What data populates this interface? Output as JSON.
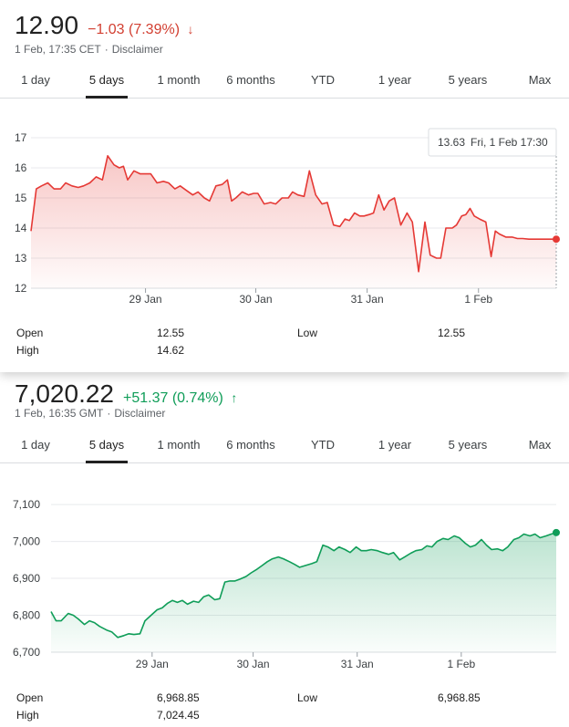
{
  "tabs": [
    "1 day",
    "5 days",
    "1 month",
    "6 months",
    "YTD",
    "1 year",
    "5 years",
    "Max"
  ],
  "active_tab": "5 days",
  "panel1": {
    "price": "12.90",
    "change": "−1.03 (7.39%)",
    "direction": "down",
    "timestamp": "1 Feb, 17:35 CET",
    "separator": "·",
    "disclaimer": "Disclaimer",
    "tooltip_value": "13.63",
    "tooltip_time": "Fri, 1 Feb 17:30",
    "stats": {
      "open_label": "Open",
      "open_value": "12.55",
      "high_label": "High",
      "high_value": "14.62",
      "low_label": "Low",
      "low_value": "12.55"
    }
  },
  "panel2": {
    "price": "7,020.22",
    "change": "+51.37 (0.74%)",
    "direction": "up",
    "timestamp": "1 Feb, 16:35 GMT",
    "separator": "·",
    "disclaimer": "Disclaimer",
    "stats": {
      "open_label": "Open",
      "open_value": "6,968.85",
      "high_label": "High",
      "high_value": "7,024.45",
      "low_label": "Low",
      "low_value": "6,968.85"
    }
  },
  "colors": {
    "down": "#e53935",
    "up": "#0f9d58"
  },
  "icons": {
    "down": "arrow-down-icon",
    "up": "arrow-up-icon"
  },
  "chart_data": [
    {
      "type": "area",
      "ylim": [
        12,
        17
      ],
      "yticks": [
        "17",
        "16",
        "15",
        "14",
        "13",
        "12"
      ],
      "yticks_values": [
        17,
        16,
        15,
        14,
        13,
        12
      ],
      "xticks": [
        "29 Jan",
        "30 Jan",
        "31 Jan",
        "1 Feb"
      ],
      "xticks_pos": [
        1.09,
        2.14,
        3.2,
        4.26
      ],
      "xlim": [
        0,
        5
      ],
      "grid": true,
      "x": [
        0,
        0.05,
        0.1,
        0.16,
        0.22,
        0.28,
        0.33,
        0.39,
        0.45,
        0.5,
        0.56,
        0.62,
        0.68,
        0.73,
        0.79,
        0.84,
        0.88,
        0.92,
        0.98,
        1.04,
        1.09,
        1.14,
        1.2,
        1.26,
        1.31,
        1.37,
        1.42,
        1.48,
        1.54,
        1.59,
        1.65,
        1.7,
        1.76,
        1.82,
        1.87,
        1.91,
        1.95,
        2.01,
        2.07,
        2.12,
        2.16,
        2.22,
        2.28,
        2.33,
        2.39,
        2.45,
        2.49,
        2.54,
        2.6,
        2.65,
        2.71,
        2.77,
        2.82,
        2.88,
        2.94,
        2.99,
        3.03,
        3.08,
        3.13,
        3.17,
        3.22,
        3.26,
        3.31,
        3.36,
        3.41,
        3.46,
        3.52,
        3.58,
        3.63,
        3.69,
        3.75,
        3.8,
        3.86,
        3.9,
        3.95,
        4.01,
        4.05,
        4.1,
        4.14,
        4.18,
        4.22,
        4.27,
        4.33,
        4.38,
        4.42,
        4.46,
        4.52,
        4.58,
        4.63,
        4.68,
        4.74,
        4.78,
        4.84,
        4.88,
        4.94,
        5.0
      ],
      "series": [
        {
          "values": [
            13.9,
            15.3,
            15.4,
            15.5,
            15.3,
            15.3,
            15.5,
            15.4,
            15.35,
            15.4,
            15.5,
            15.7,
            15.6,
            16.4,
            16.1,
            16.0,
            16.05,
            15.6,
            15.9,
            15.8,
            15.8,
            15.8,
            15.5,
            15.55,
            15.5,
            15.3,
            15.4,
            15.25,
            15.1,
            15.2,
            15.0,
            14.9,
            15.4,
            15.45,
            15.6,
            14.9,
            15.0,
            15.2,
            15.1,
            15.15,
            15.15,
            14.8,
            14.85,
            14.8,
            15.0,
            15.0,
            15.2,
            15.1,
            15.05,
            15.9,
            15.1,
            14.8,
            14.85,
            14.1,
            14.05,
            14.3,
            14.25,
            14.5,
            14.4,
            14.4,
            14.45,
            14.5,
            15.1,
            14.6,
            14.9,
            15.0,
            14.1,
            14.5,
            14.2,
            12.55,
            14.2,
            13.1,
            13.0,
            13.0,
            14.0,
            14.0,
            14.1,
            14.4,
            14.45,
            14.65,
            14.4,
            14.3,
            14.2,
            13.05,
            13.9,
            13.8,
            13.7,
            13.7,
            13.65,
            13.65,
            13.63,
            13.63,
            13.63,
            13.63,
            13.63,
            13.63
          ]
        }
      ]
    },
    {
      "type": "area",
      "ylim": [
        6700,
        7120
      ],
      "yticks": [
        "7,100",
        "7,000",
        "6,900",
        "6,800",
        "6,700"
      ],
      "yticks_values": [
        7100,
        7000,
        6900,
        6800,
        6700
      ],
      "xticks": [
        "29 Jan",
        "30 Jan",
        "31 Jan",
        "1 Feb"
      ],
      "xticks_pos": [
        1.0,
        2.0,
        3.03,
        4.06
      ],
      "xlim": [
        0,
        5
      ],
      "grid": true,
      "x": [
        0,
        0.05,
        0.1,
        0.17,
        0.22,
        0.27,
        0.33,
        0.38,
        0.43,
        0.48,
        0.55,
        0.6,
        0.66,
        0.72,
        0.77,
        0.82,
        0.88,
        0.93,
        0.99,
        1.05,
        1.1,
        1.15,
        1.2,
        1.25,
        1.3,
        1.35,
        1.41,
        1.46,
        1.51,
        1.56,
        1.62,
        1.67,
        1.72,
        1.77,
        1.82,
        1.87,
        1.93,
        1.98,
        2.04,
        2.09,
        2.14,
        2.19,
        2.25,
        2.3,
        2.36,
        2.41,
        2.46,
        2.52,
        2.58,
        2.63,
        2.69,
        2.74,
        2.8,
        2.85,
        2.91,
        2.96,
        3.02,
        3.07,
        3.12,
        3.17,
        3.23,
        3.28,
        3.34,
        3.39,
        3.45,
        3.5,
        3.56,
        3.61,
        3.67,
        3.72,
        3.77,
        3.82,
        3.88,
        3.93,
        3.99,
        4.04,
        4.1,
        4.15,
        4.2,
        4.26,
        4.31,
        4.36,
        4.42,
        4.47,
        4.52,
        4.58,
        4.63,
        4.68,
        4.74,
        4.79,
        4.84,
        4.9,
        4.95,
        5.0
      ],
      "series": [
        {
          "values": [
            6810,
            6785,
            6785,
            6805,
            6800,
            6790,
            6775,
            6785,
            6780,
            6770,
            6760,
            6755,
            6740,
            6745,
            6750,
            6748,
            6750,
            6785,
            6800,
            6815,
            6820,
            6832,
            6840,
            6835,
            6840,
            6830,
            6838,
            6835,
            6850,
            6855,
            6842,
            6845,
            6890,
            6893,
            6893,
            6898,
            6905,
            6915,
            6925,
            6935,
            6945,
            6953,
            6958,
            6953,
            6945,
            6938,
            6930,
            6935,
            6940,
            6945,
            6990,
            6985,
            6975,
            6985,
            6978,
            6970,
            6985,
            6975,
            6975,
            6978,
            6975,
            6970,
            6965,
            6970,
            6950,
            6958,
            6968,
            6975,
            6978,
            6988,
            6985,
            7000,
            7008,
            7005,
            7015,
            7010,
            6995,
            6985,
            6990,
            7005,
            6990,
            6978,
            6980,
            6975,
            6985,
            7005,
            7010,
            7020,
            7015,
            7020,
            7010,
            7015,
            7020,
            7024
          ]
        }
      ]
    }
  ]
}
